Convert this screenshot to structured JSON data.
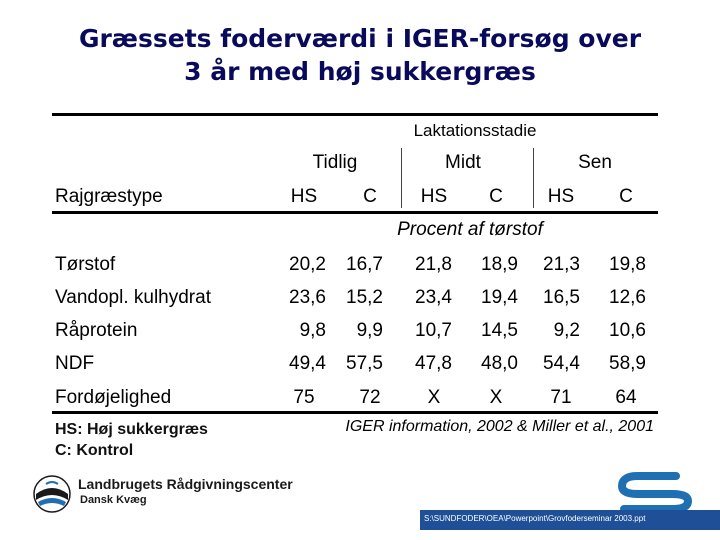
{
  "title_line1": "Græssets foderværdi i IGER-forsøg over",
  "title_line2": "3 år med høj sukkergræs",
  "table": {
    "group_header": "Laktationsstadie",
    "stages": [
      "Tidlig",
      "Midt",
      "Sen"
    ],
    "row_header": "Rajgræstype",
    "subcols": [
      "HS",
      "C",
      "HS",
      "C",
      "HS",
      "C"
    ],
    "unit_label": "Procent af tørstof",
    "rows": [
      {
        "label": "Tørstof",
        "values": [
          "20,2",
          "16,7",
          "21,8",
          "18,9",
          "21,3",
          "19,8"
        ]
      },
      {
        "label": "Vandopl. kulhydrat",
        "values": [
          "23,6",
          "15,2",
          "23,4",
          "19,4",
          "16,5",
          "12,6"
        ]
      },
      {
        "label": "Råprotein",
        "values": [
          "9,8",
          "9,9",
          "10,7",
          "14,5",
          "9,2",
          "10,6"
        ]
      },
      {
        "label": "NDF",
        "values": [
          "49,4",
          "57,5",
          "47,8",
          "48,0",
          "54,4",
          "58,9"
        ]
      },
      {
        "label": "Fordøjelighed",
        "values": [
          "75",
          "72",
          "X",
          "X",
          "71",
          "64"
        ]
      }
    ]
  },
  "legend": {
    "hs": "HS: Høj sukkergræs",
    "c": "C:   Kontrol"
  },
  "source": "IGER information, 2002 & Miller et al., 2001",
  "footer": {
    "org_name": "Landbrugets Rådgivningscenter",
    "org_sub": "Dansk Kvæg",
    "file_path": "S:\\SUNDFODER\\OEA\\Powerpoint\\Grovfoderseminar 2003.ppt",
    "band_color": "#1f4f96",
    "logo_color": "#1f6fb3"
  }
}
